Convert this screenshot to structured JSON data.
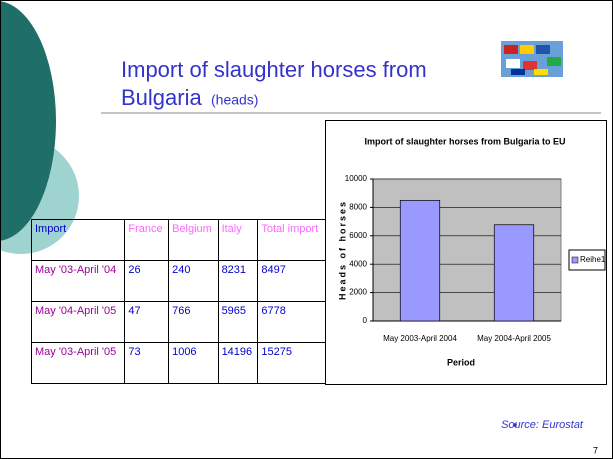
{
  "header": {
    "title": "Import of slaughter horses from",
    "title_line2": "Bulgaria",
    "unit": "(heads)"
  },
  "table": {
    "header": [
      "Import",
      "France",
      "Belgium",
      "Italy",
      "Total import"
    ],
    "rows": [
      [
        "May '03-April '04",
        "26",
        "240",
        "8231",
        "8497"
      ],
      [
        "May '04-April '05",
        "47",
        "766",
        "5965",
        "6778"
      ],
      [
        "May '03-April '05",
        "73",
        "1006",
        "14196",
        "15275"
      ]
    ]
  },
  "chart_data": {
    "type": "bar",
    "title": "Import of slaughter horses from Bulgaria to EU",
    "categories": [
      "May 2003-April 2004",
      "May 2004-April 2005"
    ],
    "series": [
      {
        "name": "Reihe1",
        "color": "#9999ff",
        "values": [
          8497,
          6778
        ]
      }
    ],
    "ylim": [
      0,
      10000
    ],
    "yticks": [
      0,
      2000,
      4000,
      6000,
      8000,
      10000
    ],
    "grid": true,
    "ylabel": "Heads of horses",
    "xlabel": "Period",
    "legend": "right"
  },
  "source": "Source: Eurostat",
  "page_number": "7"
}
